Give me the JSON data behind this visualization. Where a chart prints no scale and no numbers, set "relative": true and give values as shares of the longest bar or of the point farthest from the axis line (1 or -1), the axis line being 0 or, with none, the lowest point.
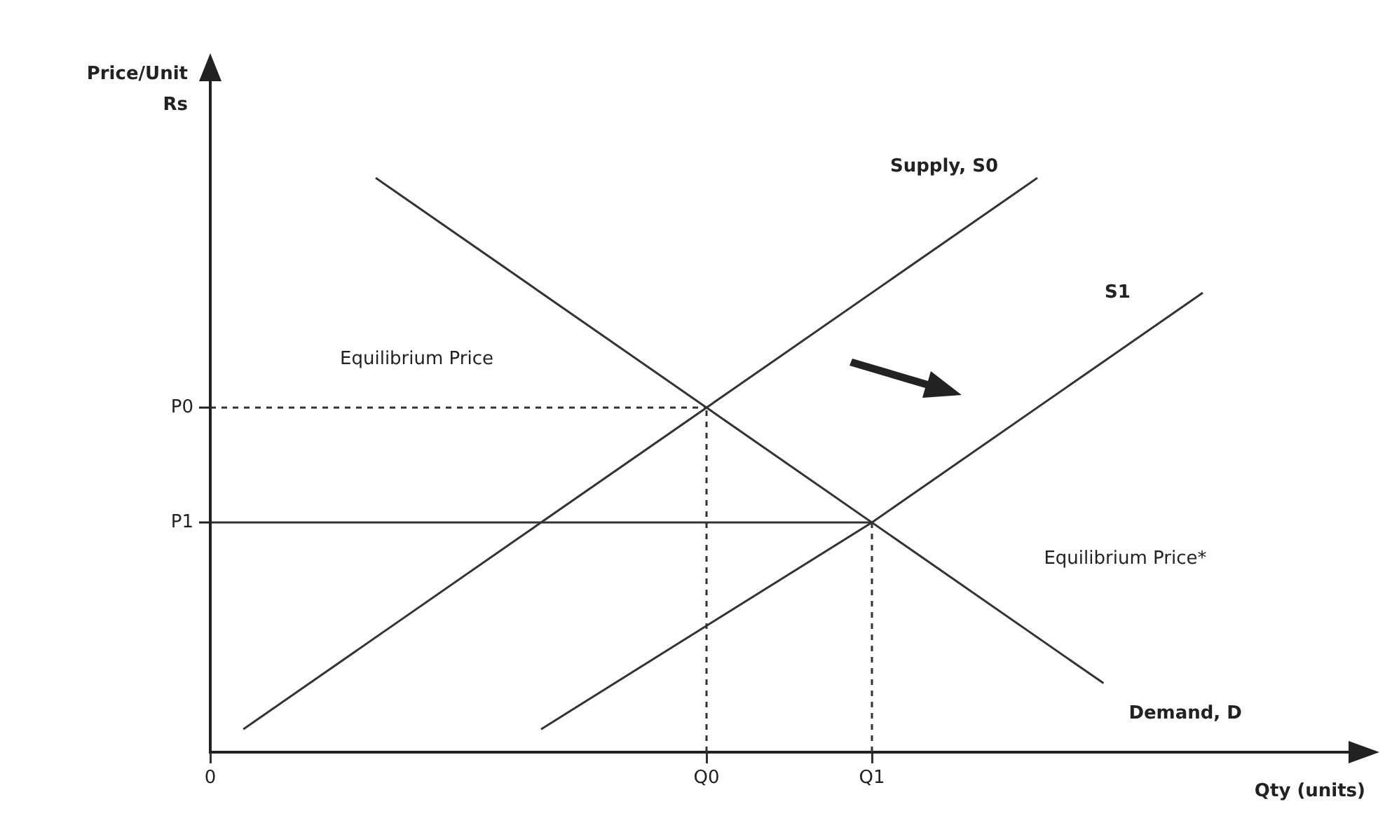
{
  "chart_data": {
    "type": "line",
    "xlabel": "Qty (units)",
    "ylabel": "Price/Unit\nRs",
    "relative": true,
    "categories": [
      "0",
      null,
      null,
      null,
      null,
      null,
      null,
      null,
      null,
      null,
      null,
      null,
      null,
      null,
      null,
      "Q0",
      null,
      null,
      null,
      null,
      "Q1",
      null,
      null,
      null,
      null,
      null,
      null,
      null,
      null,
      null,
      null,
      null,
      null,
      null,
      null,
      null
    ],
    "series": [
      {
        "name": "Supply, S0",
        "color": "#333333",
        "values": [
          null,
          0.04,
          null,
          null,
          null,
          null,
          null,
          null,
          null,
          null,
          null,
          null,
          null,
          null,
          null,
          null,
          null,
          null,
          null,
          null,
          null,
          null,
          null,
          null,
          null,
          1,
          null,
          null,
          null,
          null,
          null,
          null,
          null,
          null,
          null,
          null
        ]
      },
      {
        "name": "S1",
        "color": "#333333",
        "values": [
          null,
          null,
          null,
          null,
          null,
          null,
          null,
          null,
          null,
          null,
          0.04,
          null,
          null,
          null,
          null,
          null,
          null,
          null,
          null,
          null,
          0.4,
          null,
          null,
          null,
          null,
          null,
          null,
          null,
          null,
          null,
          0.8,
          null,
          null,
          null,
          null,
          null
        ]
      },
      {
        "name": "Demand, D",
        "color": "#333333",
        "values": [
          null,
          null,
          null,
          null,
          null,
          1,
          null,
          null,
          null,
          null,
          null,
          null,
          null,
          null,
          null,
          0.6,
          null,
          null,
          null,
          null,
          null,
          null,
          null,
          null,
          null,
          null,
          null,
          0.12,
          null,
          null,
          null,
          null,
          null,
          null,
          null,
          null
        ]
      },
      {
        "name": "P0",
        "color": "#333333",
        "line_style": "dashed",
        "values": [
          0.6,
          null,
          null,
          null,
          null,
          null,
          null,
          null,
          null,
          null,
          null,
          null,
          null,
          null,
          null,
          0.6,
          null,
          null,
          null,
          null,
          null,
          null,
          null,
          null,
          null,
          null,
          null,
          null,
          null,
          null,
          null,
          null,
          null,
          null,
          null,
          null
        ]
      },
      {
        "name": "P1",
        "color": "#333333",
        "line_style": "solid",
        "values": [
          0.4,
          null,
          null,
          null,
          null,
          null,
          null,
          null,
          null,
          null,
          null,
          null,
          null,
          null,
          null,
          null,
          null,
          null,
          null,
          null,
          0.4,
          null,
          null,
          null,
          null,
          null,
          null,
          null,
          null,
          null,
          null,
          null,
          null,
          null,
          null,
          null
        ]
      },
      {
        "color": "#333333",
        "line_style": "dashed",
        "x": [
          "Q0",
          "Q0"
        ],
        "values": [
          0,
          0.6
        ]
      },
      {
        "color": "#333333",
        "line_style": "dashed",
        "x": [
          "Q1",
          "Q1"
        ],
        "values": [
          0,
          0.4
        ]
      }
    ],
    "annotations": [
      "Equilibrium Price",
      "Equilibrium Price*"
    ],
    "legend": false,
    "marker": "none"
  }
}
